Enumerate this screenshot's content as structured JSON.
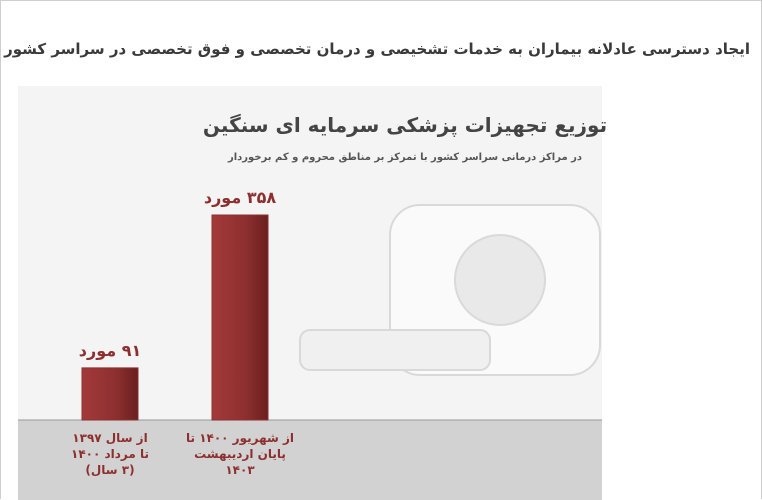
{
  "header": {
    "title": "ایجاد دسترسی عادلانه بیماران به خدمات تشخیصی و درمان تخصصی و فوق تخصصی در سراسر کشور"
  },
  "chart_data": {
    "type": "bar",
    "title": "توزیع تجهیزات پزشکی سرمایه ای سنگین",
    "subtitle": "در مراکز درمانی سراسر کشور با تمرکز بر مناطق محروم و کم برخوردار",
    "categories": [
      [
        "از سال ۱۳۹۷",
        "تا مرداد ۱۴۰۰",
        "(۳ سال)"
      ],
      [
        "از شهریور ۱۴۰۰ تا",
        "پایان اردیبهشت",
        "۱۴۰۳"
      ]
    ],
    "values": [
      91,
      358
    ],
    "value_labels": [
      "۹۱ مورد",
      "۳۵۸ مورد"
    ],
    "color": "#8e2f2f"
  }
}
